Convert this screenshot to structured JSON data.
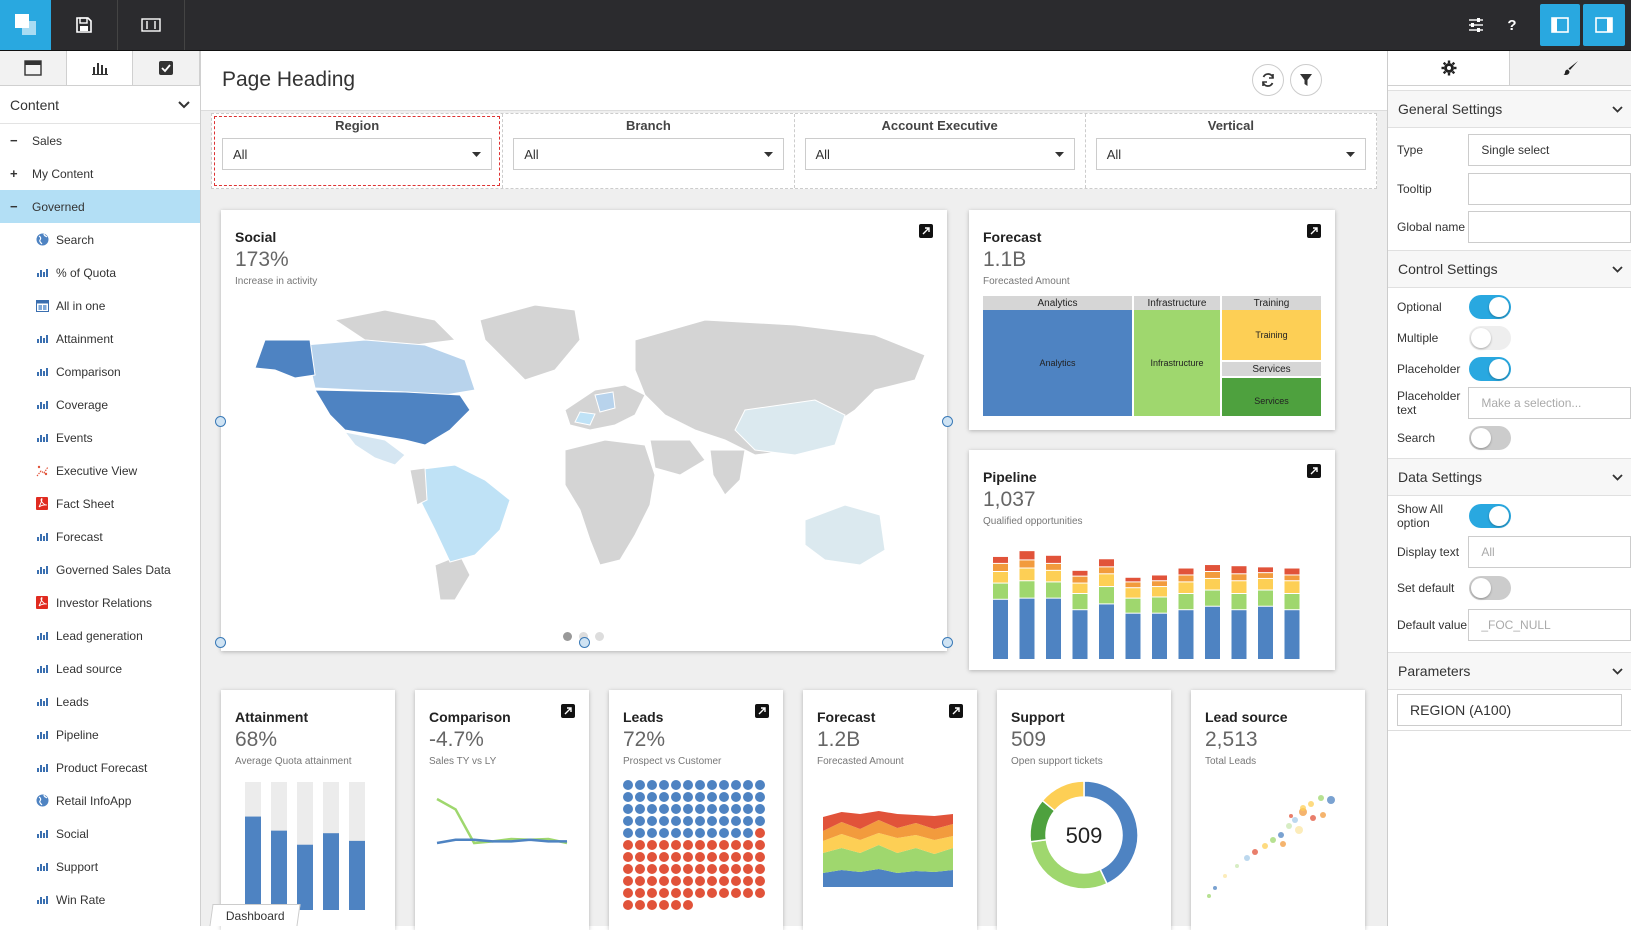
{
  "page": {
    "heading": "Page Heading"
  },
  "colors": {
    "accent": "#29a8e0",
    "blue": "#4e83c2",
    "green": "#9fd76e",
    "yellow": "#fdcf55",
    "orange": "#f29b3d",
    "red": "#e1533a",
    "darkgreen": "#4ea13e"
  },
  "left": {
    "content_select": "Content",
    "tree": [
      {
        "label": "Sales",
        "level": 0,
        "toggle": "−"
      },
      {
        "label": "My Content",
        "level": 0,
        "toggle": "+"
      },
      {
        "label": "Governed",
        "level": 0,
        "toggle": "−",
        "selected": true
      },
      {
        "label": "Search",
        "level": 1,
        "icon": "globe-icon"
      },
      {
        "label": "% of Quota",
        "level": 1,
        "icon": "bar-chart-icon"
      },
      {
        "label": "All in one",
        "level": 1,
        "icon": "page-icon"
      },
      {
        "label": "Attainment",
        "level": 1,
        "icon": "bar-chart-icon"
      },
      {
        "label": "Comparison",
        "level": 1,
        "icon": "bar-chart-icon"
      },
      {
        "label": "Coverage",
        "level": 1,
        "icon": "bar-chart-icon"
      },
      {
        "label": "Events",
        "level": 1,
        "icon": "bar-chart-icon"
      },
      {
        "label": "Executive View",
        "level": 1,
        "icon": "scatter-icon"
      },
      {
        "label": "Fact Sheet",
        "level": 1,
        "icon": "pdf-icon"
      },
      {
        "label": "Forecast",
        "level": 1,
        "icon": "bar-chart-icon"
      },
      {
        "label": "Governed Sales Data",
        "level": 1,
        "icon": "bar-chart-icon"
      },
      {
        "label": "Investor Relations",
        "level": 1,
        "icon": "pdf-icon"
      },
      {
        "label": "Lead generation",
        "level": 1,
        "icon": "bar-chart-icon"
      },
      {
        "label": "Lead source",
        "level": 1,
        "icon": "bar-chart-icon"
      },
      {
        "label": "Leads",
        "level": 1,
        "icon": "bar-chart-icon"
      },
      {
        "label": "Pipeline",
        "level": 1,
        "icon": "bar-chart-icon"
      },
      {
        "label": "Product Forecast",
        "level": 1,
        "icon": "bar-chart-icon"
      },
      {
        "label": "Retail InfoApp",
        "level": 1,
        "icon": "globe-icon"
      },
      {
        "label": "Social",
        "level": 1,
        "icon": "bar-chart-icon"
      },
      {
        "label": "Support",
        "level": 1,
        "icon": "bar-chart-icon"
      },
      {
        "label": "Win Rate",
        "level": 1,
        "icon": "bar-chart-icon"
      }
    ]
  },
  "filters": [
    {
      "label": "Region",
      "value": "All"
    },
    {
      "label": "Branch",
      "value": "All"
    },
    {
      "label": "Account Executive",
      "value": "All"
    },
    {
      "label": "Vertical",
      "value": "All"
    }
  ],
  "cards": {
    "social": {
      "title": "Social",
      "value": "173%",
      "sub": "Increase in activity"
    },
    "forecast_big": {
      "title": "Forecast",
      "value": "1.1B",
      "sub": "Forecasted Amount"
    },
    "pipeline": {
      "title": "Pipeline",
      "value": "1,037",
      "sub": "Qualified opportunities"
    },
    "attainment": {
      "title": "Attainment",
      "value": "68%",
      "sub": "Average Quota attainment"
    },
    "comparison": {
      "title": "Comparison",
      "value": "-4.7%",
      "sub": "Sales TY vs LY"
    },
    "leads": {
      "title": "Leads",
      "value": "72%",
      "sub": "Prospect vs Customer"
    },
    "forecast_small": {
      "title": "Forecast",
      "value": "1.2B",
      "sub": "Forecasted Amount"
    },
    "support": {
      "title": "Support",
      "value": "509",
      "sub": "Open support tickets",
      "center": "509"
    },
    "lead_source": {
      "title": "Lead source",
      "value": "2,513",
      "sub": "Total Leads"
    }
  },
  "chart_data": [
    {
      "type": "treemap",
      "items": [
        {
          "label": "Analytics",
          "header": "Analytics",
          "color": "#4e83c2",
          "share": 0.5
        },
        {
          "label": "Infrastructure",
          "header": "Infrastructure",
          "color": "#9fd76e",
          "share": 0.28
        },
        {
          "label": "Training",
          "header": "Training",
          "color": "#fdcf55",
          "share": 0.14
        },
        {
          "label": "Services",
          "header": "Services",
          "color": "#4ea13e",
          "share": 0.08
        }
      ]
    },
    {
      "type": "bar",
      "stacked": true,
      "series_colors": [
        "#4e83c2",
        "#9fd76e",
        "#fdcf55",
        "#f29b3d",
        "#e1533a"
      ],
      "values": [
        [
          52,
          14,
          10,
          7,
          6
        ],
        [
          53,
          15,
          11,
          7,
          8
        ],
        [
          53,
          14,
          10,
          6,
          7
        ],
        [
          43,
          14,
          9,
          6,
          5
        ],
        [
          48,
          15,
          11,
          6,
          7
        ],
        [
          40,
          13,
          9,
          5,
          4
        ],
        [
          40,
          14,
          9,
          5,
          5
        ],
        [
          43,
          14,
          10,
          6,
          6
        ],
        [
          46,
          14,
          10,
          6,
          6
        ],
        [
          43,
          14,
          11,
          6,
          7
        ],
        [
          46,
          14,
          10,
          5,
          5
        ],
        [
          43,
          14,
          11,
          5,
          6
        ]
      ]
    },
    {
      "type": "bar",
      "stacked": true,
      "background": true,
      "values": [
        [
          73,
          27
        ],
        [
          62,
          38
        ],
        [
          51,
          49
        ],
        [
          60,
          40
        ],
        [
          54,
          46
        ]
      ]
    },
    {
      "type": "line",
      "series": [
        {
          "color": "#9fd76e",
          "values": [
            95,
            82,
            40,
            42,
            45,
            44,
            45,
            40
          ]
        },
        {
          "color": "#4e83c2",
          "values": [
            40,
            44,
            44,
            42,
            42,
            44,
            42,
            42
          ]
        }
      ]
    },
    {
      "type": "waffle",
      "rows": 11,
      "cols": 12,
      "customer_share": 0.45
    },
    {
      "type": "area",
      "stacked": true,
      "series_colors": [
        "#4e83c2",
        "#9fd76e",
        "#fdcf55",
        "#f29b3d",
        "#e1533a"
      ]
    },
    {
      "type": "pie",
      "donut": true,
      "center": "509",
      "slices": [
        {
          "color": "#4e83c2",
          "value": 43
        },
        {
          "color": "#9fd76e",
          "value": 30
        },
        {
          "color": "#4ea13e",
          "value": 13
        },
        {
          "color": "#fdcf55",
          "value": 14
        }
      ]
    },
    {
      "type": "scatter"
    }
  ],
  "right": {
    "sections": {
      "general": "General Settings",
      "control": "Control Settings",
      "data": "Data Settings",
      "parameters": "Parameters"
    },
    "general": {
      "type_label": "Type",
      "type_value": "Single select",
      "tooltip_label": "Tooltip",
      "global_label": "Global name"
    },
    "control": {
      "optional": "Optional",
      "multiple": "Multiple",
      "placeholder": "Placeholder",
      "placeholder_text_label": "Placeholder text",
      "placeholder_text_value": "Make a selection...",
      "search": "Search"
    },
    "data": {
      "show_all": "Show All option",
      "display_text": "Display text",
      "display_text_value": "All",
      "set_default": "Set default",
      "default_value_label": "Default value",
      "default_value": "_FOC_NULL"
    },
    "parameter": "REGION (A100)"
  },
  "dashboard_tab": "Dashboard"
}
